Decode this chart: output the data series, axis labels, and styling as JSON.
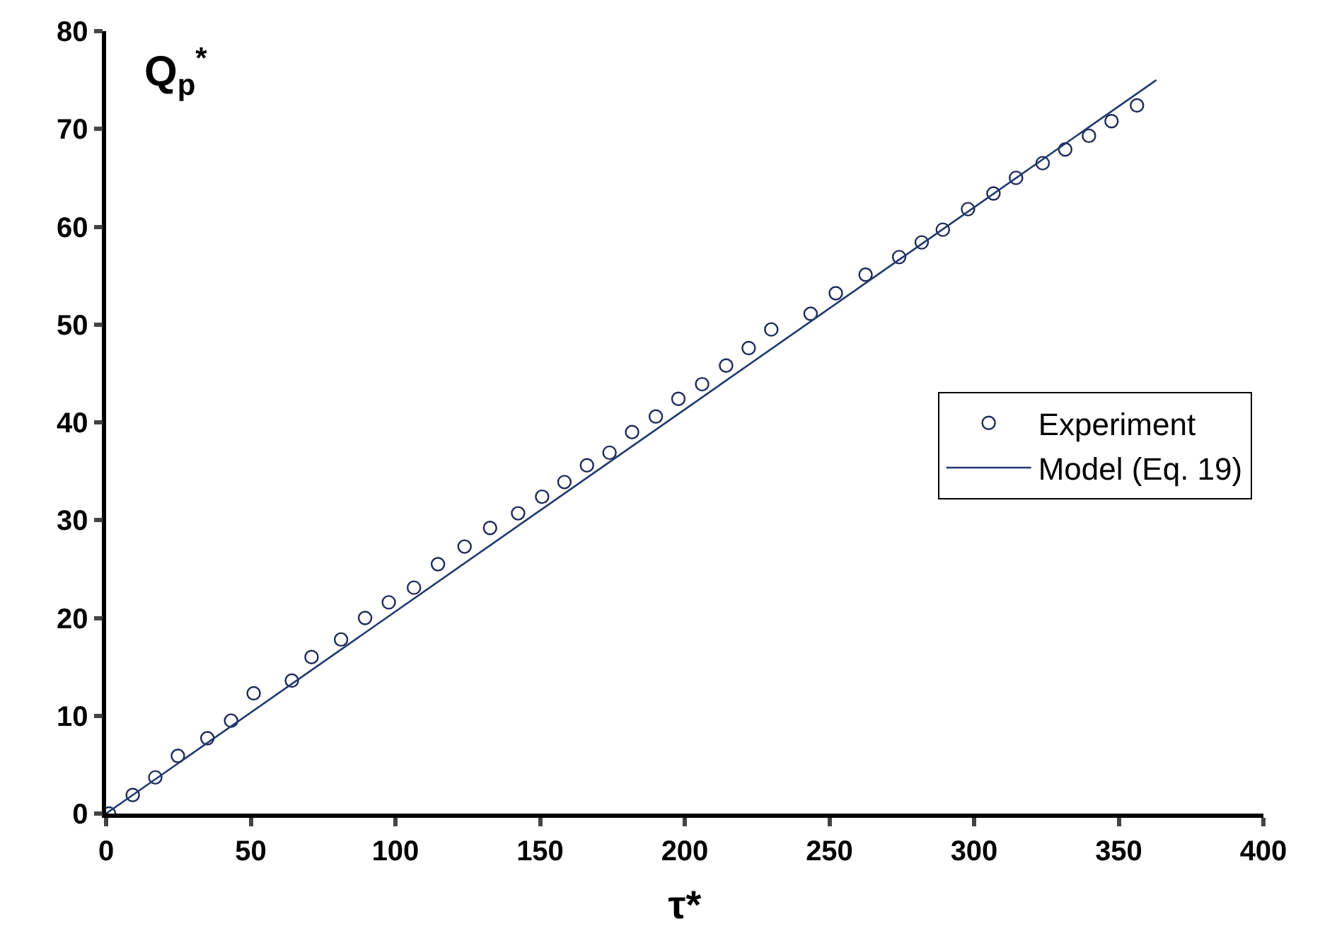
{
  "chart_data": {
    "type": "scatter",
    "xlabel": "τ*",
    "ylabel": "Q$_{p}$$^{*}$",
    "xlim": [
      0,
      400
    ],
    "xticks": [
      0,
      50,
      100,
      150,
      200,
      250,
      300,
      350,
      400
    ],
    "ylim": [
      0,
      80
    ],
    "yticks": [
      0,
      10,
      20,
      30,
      40,
      50,
      60,
      70,
      80
    ],
    "legend": "right",
    "series": [
      {
        "name": "Experiment",
        "marker": "circle",
        "color": "#1f2a5a",
        "x": [
          1,
          9.2,
          17,
          24.8,
          35,
          43.2,
          51,
          64.2,
          71,
          81.2,
          89.5,
          97.7,
          106.4,
          114.7,
          123.9,
          132.7,
          142.4,
          150.7,
          158.4,
          166.2,
          174,
          181.8,
          190,
          197.8,
          206,
          214.3,
          222.1,
          229.9,
          243.5,
          252.2,
          262.5,
          274.1,
          281.9,
          289.2,
          297.9,
          306.7,
          314.5,
          323.7,
          331.5,
          339.7,
          347.5,
          356.3
        ],
        "values": [
          0,
          1.9,
          3.7,
          5.9,
          7.7,
          9.5,
          12.3,
          13.6,
          16,
          17.8,
          20,
          21.6,
          23.1,
          25.5,
          27.3,
          29.2,
          30.7,
          32.4,
          33.9,
          35.6,
          36.9,
          39,
          40.6,
          42.4,
          43.9,
          45.8,
          47.6,
          49.5,
          51.1,
          53.2,
          55.1,
          56.9,
          58.4,
          59.7,
          61.8,
          63.4,
          65,
          66.5,
          67.9,
          69.3,
          70.8,
          72.4
        ]
      },
      {
        "name": "Model (Eq. 19)",
        "type": "line",
        "line_style": "solid",
        "color": "#1f3a6e",
        "x": [
          0,
          363
        ],
        "values": [
          0,
          75
        ]
      }
    ]
  }
}
